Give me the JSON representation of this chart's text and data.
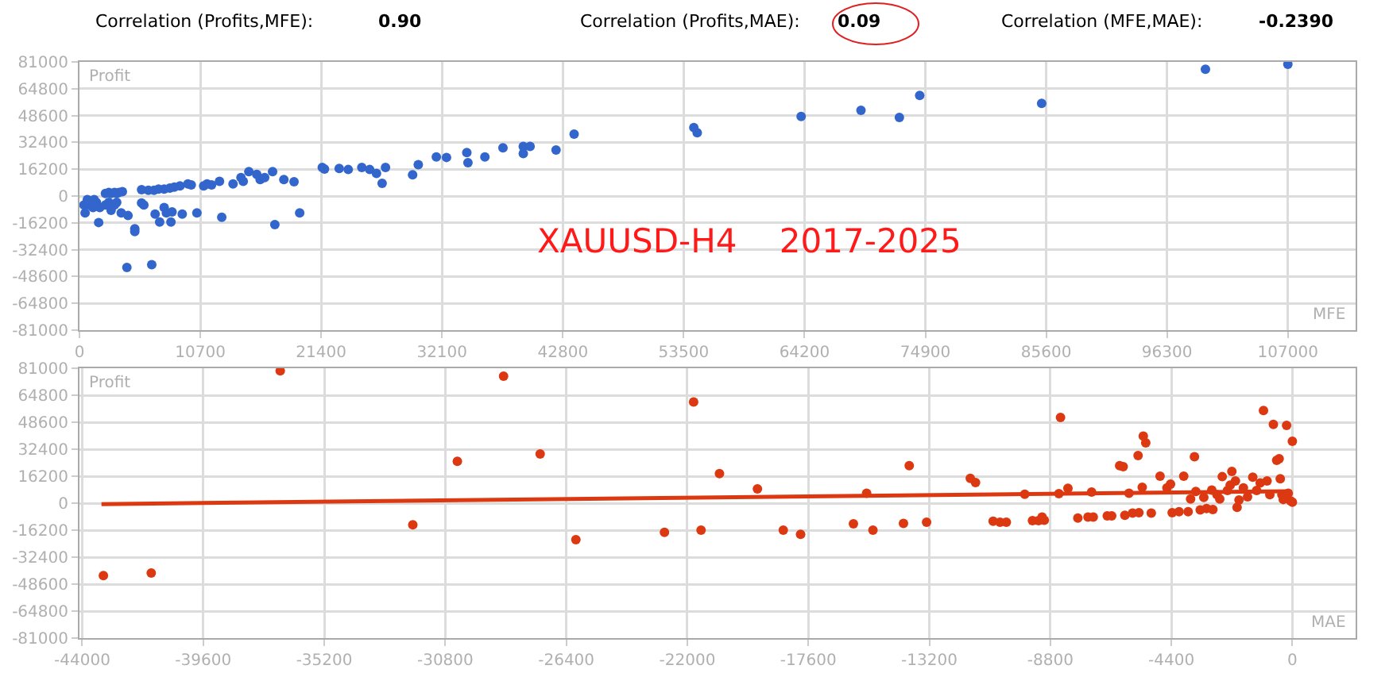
{
  "chart_data": [
    {
      "type": "scatter",
      "xlabel": "MFE",
      "ylabel": "Profit",
      "grid": true,
      "marker": "circle",
      "annotations": [
        "Correlation (Profits,MFE):",
        "0.90",
        "Correlation (Profits,MAE):",
        "0.09",
        "Correlation (MFE,MAE):",
        "-0.2390",
        "XAUUSD-H4    2017-2025"
      ],
      "xlim": [
        0,
        113000
      ],
      "xticks": [
        0,
        10700,
        21400,
        32100,
        42800,
        53500,
        64200,
        74900,
        85600,
        96300,
        107000
      ],
      "ylim": [
        -81000,
        81000
      ],
      "yticks": [
        -81000,
        -64800,
        -48600,
        -32400,
        -16200,
        0,
        16200,
        32400,
        48600,
        64800,
        81000
      ],
      "series": [
        {
          "color": "#3366cc",
          "x": [
            400,
            700,
            900,
            1200,
            1300,
            1500,
            1800,
            500,
            1700,
            2300,
            2600,
            2800,
            3100,
            3300,
            3500,
            3800,
            2300,
            2600,
            2800,
            3100,
            3300,
            3700,
            4300,
            4900,
            4900,
            4200,
            6400,
            5500,
            5700,
            6700,
            7100,
            7500,
            7700,
            8100,
            8200,
            9100,
            10400,
            12600,
            17300,
            19500,
            5500,
            6100,
            6600,
            7000,
            7500,
            8000,
            8400,
            8900,
            9600,
            9900,
            11000,
            11300,
            11700,
            12400,
            13600,
            14300,
            14500,
            15000,
            15700,
            16000,
            16400,
            17100,
            18100,
            19000,
            21500,
            21700,
            23000,
            23800,
            25000,
            25700,
            26300,
            26800,
            27100,
            29500,
            30000,
            31600,
            32500,
            34300,
            34400,
            35900,
            37500,
            39300,
            39300,
            39900,
            42200,
            43800,
            54400,
            54700,
            63900,
            69200,
            72600,
            74400,
            85200,
            99700,
            107000
          ],
          "values": [
            -5400,
            -2200,
            -5400,
            -7000,
            -2200,
            -3800,
            -7000,
            -10200,
            -16000,
            1600,
            2200,
            1600,
            2200,
            1600,
            2200,
            2600,
            -5400,
            -3800,
            -8600,
            -5400,
            -3800,
            -10200,
            -11800,
            -19800,
            -21400,
            -43100,
            -41500,
            -4200,
            -5400,
            -10900,
            -15700,
            -7000,
            -10200,
            -15700,
            -9600,
            -10900,
            -10200,
            -12800,
            -17300,
            -10200,
            3800,
            3500,
            3500,
            4200,
            4200,
            4800,
            5400,
            6100,
            7300,
            6700,
            6100,
            7300,
            6700,
            8900,
            7300,
            11200,
            8900,
            14700,
            13100,
            9900,
            11200,
            14700,
            9900,
            8600,
            17300,
            16300,
            16600,
            16000,
            17300,
            16000,
            13700,
            7700,
            17300,
            12800,
            18900,
            23600,
            23300,
            26200,
            20100,
            23600,
            29100,
            30000,
            25600,
            30000,
            27800,
            37400,
            41300,
            38200,
            48000,
            51800,
            47400,
            60700,
            56000,
            76600,
            79500
          ]
        }
      ]
    },
    {
      "type": "scatter",
      "xlabel": "MAE",
      "ylabel": "Profit",
      "grid": true,
      "marker": "circle",
      "xlim": [
        -44100,
        2300
      ],
      "xticks": [
        -44000,
        -39600,
        -35200,
        -30800,
        -26400,
        -22000,
        -17600,
        -13200,
        -8800,
        -4400,
        0
      ],
      "ylim": [
        -81000,
        81000
      ],
      "yticks": [
        -81000,
        -64800,
        -48600,
        -32400,
        -16200,
        0,
        16200,
        32400,
        48600,
        64800,
        81000
      ],
      "series": [
        {
          "color": "#dc3912",
          "x": [
            -43230,
            -41490,
            -36800,
            -31980,
            -30360,
            -28680,
            -27350,
            -26050,
            -22830,
            -21770,
            -21500,
            -20830,
            -19450,
            -18510,
            -17880,
            -15960,
            -15480,
            -15250,
            -14140,
            -13930,
            -13300,
            -11710,
            -11520,
            -10880,
            -10630,
            -10400,
            -9730,
            -9450,
            -9230,
            -9100,
            -9020,
            -8490,
            -8430,
            -8160,
            -7800,
            -7430,
            -7240,
            -7300,
            -6730,
            -6570,
            -6280,
            -6150,
            -6090,
            -5940,
            -5810,
            -5610,
            -5580,
            -5460,
            -5420,
            -5330,
            -5130,
            -4810,
            -4560,
            -4430,
            -4370,
            -4120,
            -3950,
            -3790,
            -3700,
            -3560,
            -3510,
            -3350,
            -3220,
            -3120,
            -2930,
            -2890,
            -2740,
            -2640,
            -2550,
            -2360,
            -2260,
            -2200,
            -2070,
            -2010,
            -1940,
            -1780,
            -1630,
            -1440,
            -1300,
            -1170,
            -1050,
            -920,
            -820,
            -690,
            -570,
            -480,
            -440,
            -380,
            -330,
            -210,
            -150,
            -60,
            0,
            0
          ],
          "values": [
            -43500,
            -41900,
            79400,
            -13000,
            25100,
            76200,
            29500,
            -21900,
            -17500,
            60700,
            -16200,
            17800,
            8600,
            -16200,
            -18700,
            -12400,
            6000,
            -16200,
            -12100,
            22500,
            -11400,
            14900,
            12400,
            -10800,
            -11400,
            -11400,
            5400,
            -10500,
            -10500,
            -8300,
            -10200,
            5700,
            51500,
            8900,
            -8900,
            -8300,
            -8300,
            6700,
            -7600,
            -7600,
            22500,
            21900,
            -7300,
            6000,
            -6000,
            28600,
            -5700,
            9500,
            40300,
            36200,
            -6000,
            16200,
            9200,
            11400,
            -5700,
            -5100,
            16200,
            -5100,
            2500,
            27900,
            7000,
            -4100,
            3500,
            -3200,
            7900,
            -3800,
            5100,
            2500,
            15900,
            7600,
            10800,
            19100,
            13300,
            -2500,
            1900,
            9200,
            3800,
            15600,
            7600,
            12100,
            55600,
            13300,
            5100,
            47300,
            25700,
            26700,
            14600,
            5100,
            2200,
            46700,
            6000,
            1300,
            37200,
            600
          ]
        },
        {
          "type": "line",
          "marker": "none",
          "color": "#dc3912",
          "x": [
            -43300,
            -200
          ],
          "values": [
            -600,
            7200
          ]
        }
      ]
    }
  ]
}
